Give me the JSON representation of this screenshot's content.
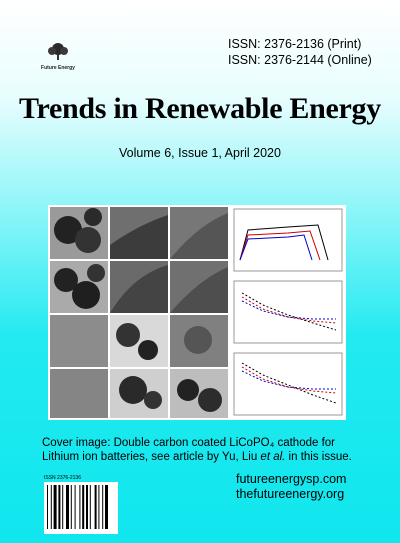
{
  "header": {
    "issn_print": "ISSN: 2376-2136 (Print)",
    "issn_online": "ISSN: 2376-2144 (Online)",
    "logo_text": "Future Energy"
  },
  "title": "Trends in Renewable Energy",
  "issue": "Volume 6, Issue 1, April 2020",
  "caption": {
    "before": "Cover image: Double carbon coated LiCoPO₄ cathode for Lithium ion batteries, see article by Yu, Liu ",
    "italic": "et al.",
    "after": " in this issue."
  },
  "barcode": {
    "label": "ISSN 2376-2136"
  },
  "websites": [
    "futureenergysp.com",
    "thefutureenergy.org"
  ]
}
